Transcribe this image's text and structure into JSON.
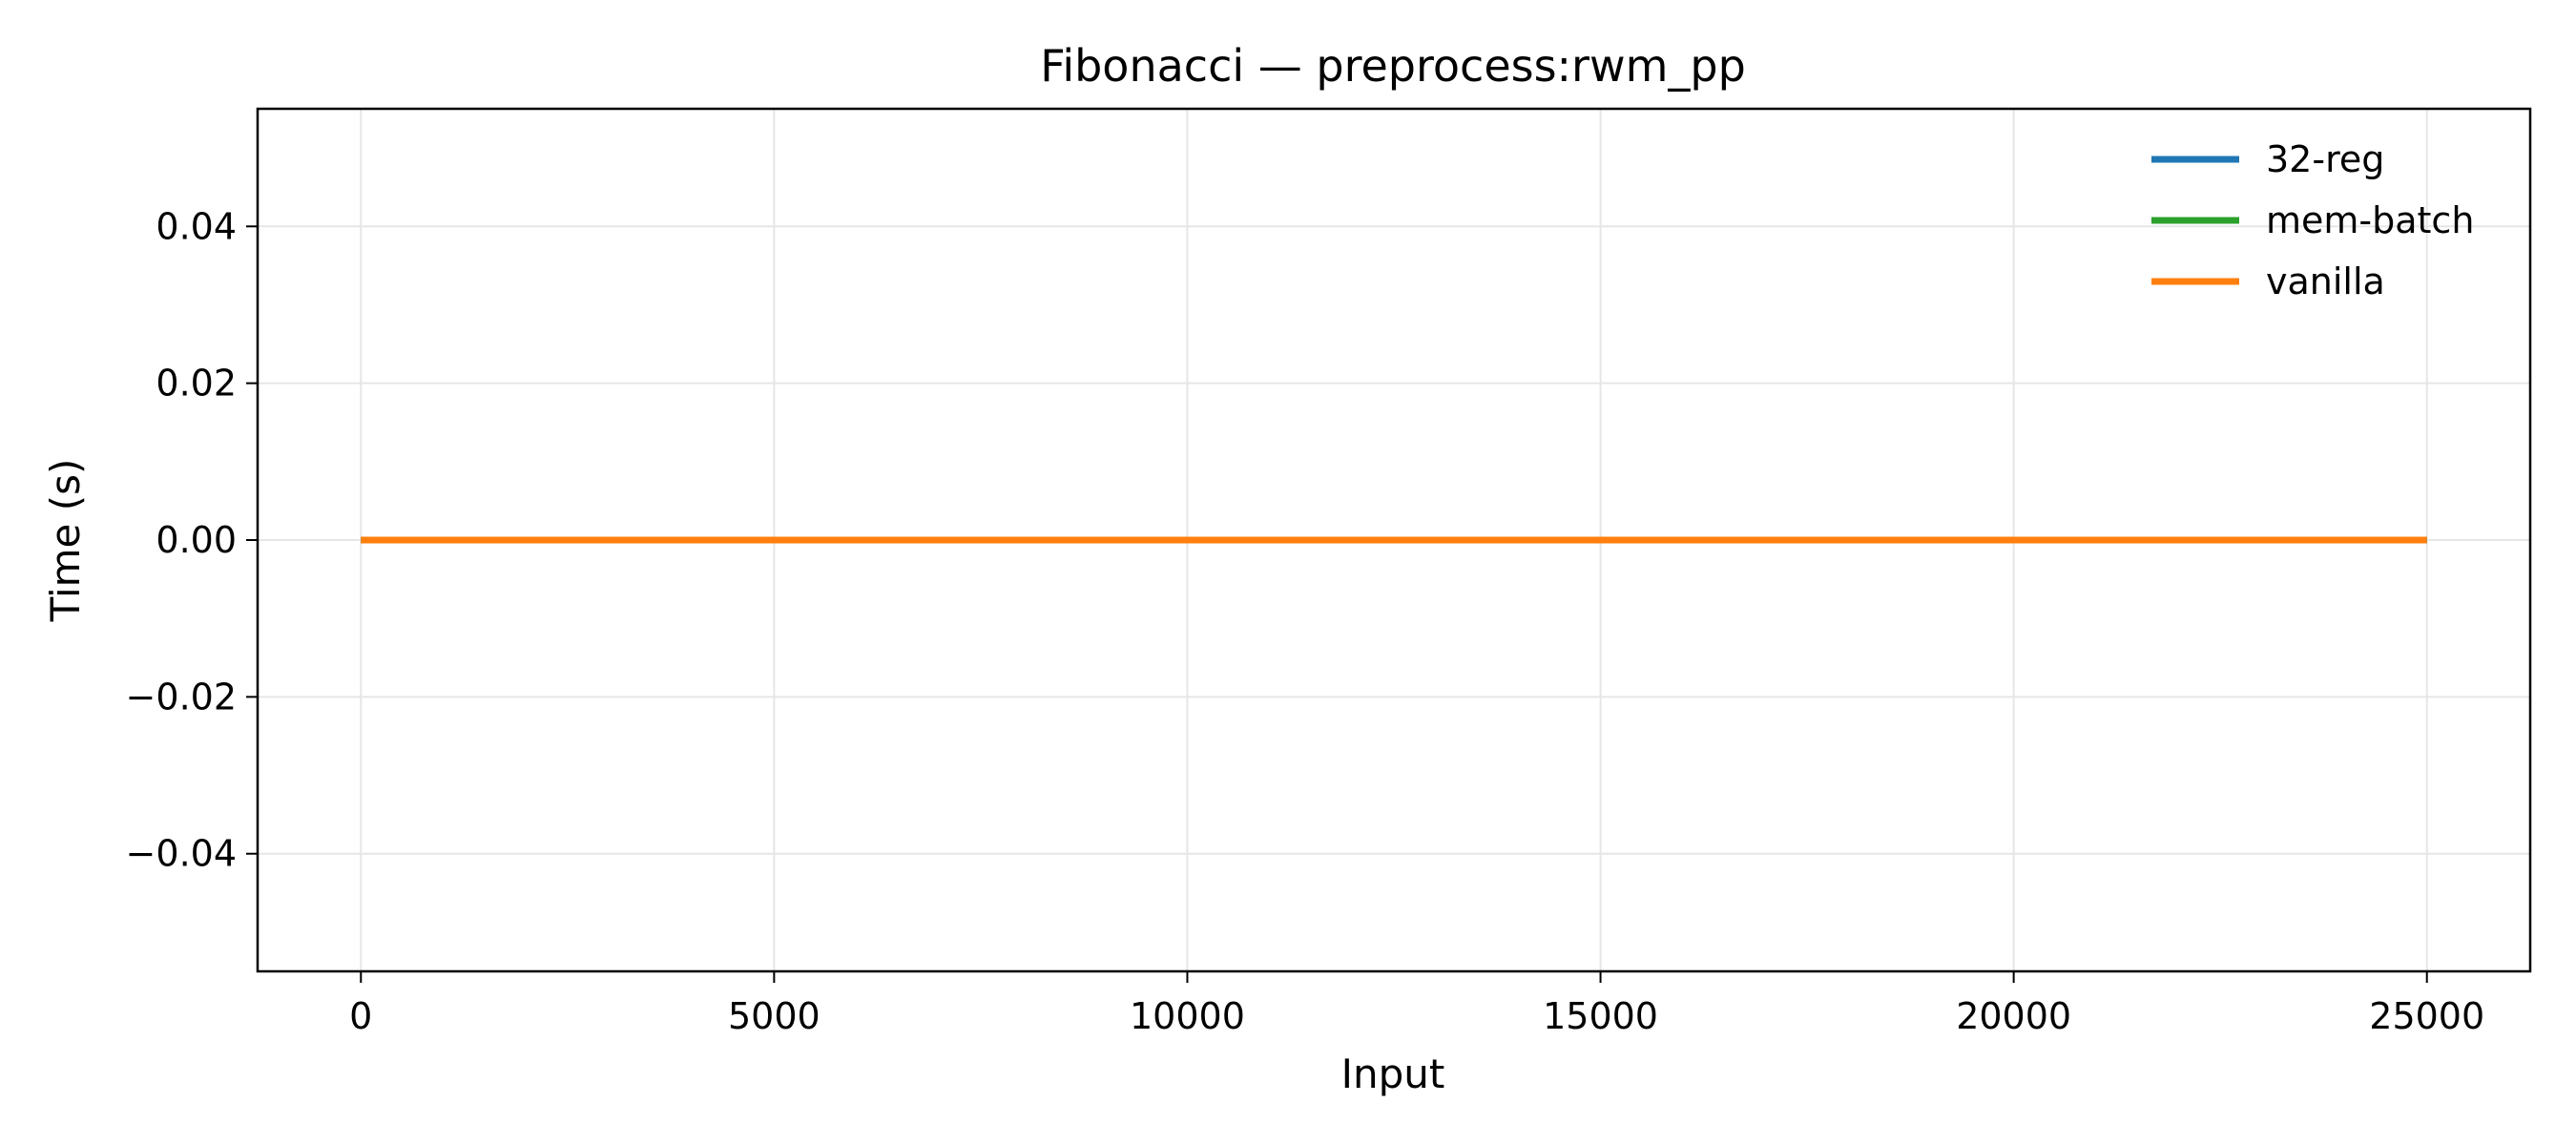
{
  "chart_data": {
    "type": "line",
    "title": "Fibonacci — preprocess:rwm_pp",
    "xlabel": "Input",
    "ylabel": "Time (s)",
    "xlim": [
      -1250,
      26250
    ],
    "ylim": [
      -0.055,
      0.055
    ],
    "xticks": [
      0,
      5000,
      10000,
      15000,
      20000,
      25000
    ],
    "xtick_labels": [
      "0",
      "5000",
      "10000",
      "15000",
      "20000",
      "25000"
    ],
    "yticks": [
      -0.04,
      -0.02,
      0.0,
      0.02,
      0.04
    ],
    "ytick_labels": [
      "−0.04",
      "−0.02",
      "0.00",
      "0.02",
      "0.04"
    ],
    "grid": true,
    "legend_position": "top-right",
    "series": [
      {
        "name": "32-reg",
        "color": "#1f77b4",
        "x": [
          0,
          25000
        ],
        "y": [
          0.0,
          0.0
        ]
      },
      {
        "name": "mem-batch",
        "color": "#2ca02c",
        "x": [
          0,
          25000
        ],
        "y": [
          0.0,
          0.0
        ]
      },
      {
        "name": "vanilla",
        "color": "#ff7f0e",
        "x": [
          0,
          25000
        ],
        "y": [
          0.0,
          0.0
        ]
      }
    ]
  }
}
